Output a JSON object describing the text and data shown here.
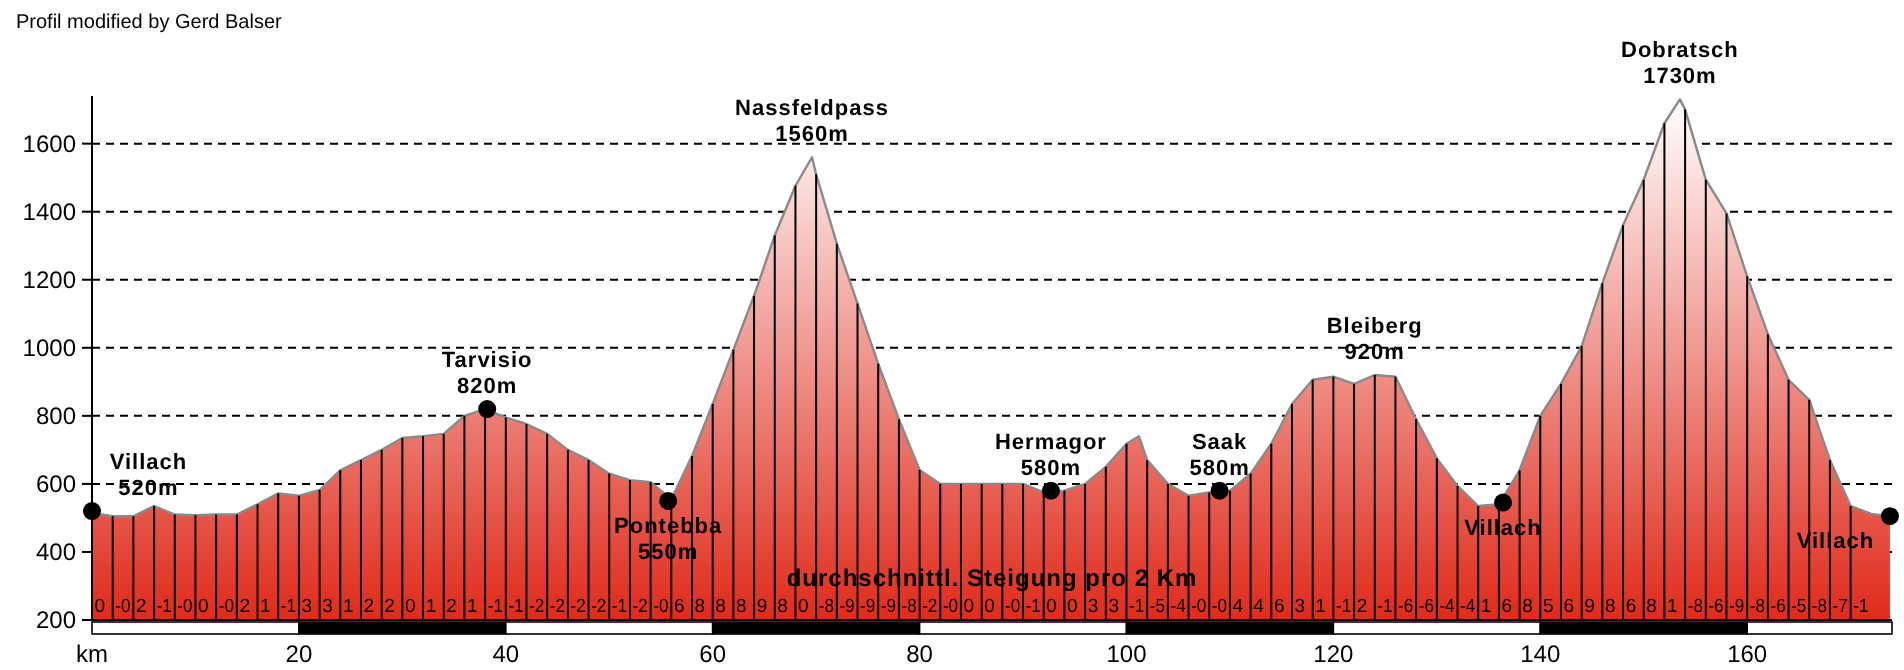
{
  "chart_data": {
    "type": "area",
    "title": "Profil modified by Gerd Balser",
    "xlim": [
      0,
      174
    ],
    "xticks": [
      {
        "value": 0,
        "label": "km"
      },
      20,
      40,
      60,
      80,
      100,
      120,
      140,
      160
    ],
    "ylim": [
      200,
      1740
    ],
    "yticks": [
      200,
      400,
      600,
      800,
      1000,
      1200,
      1400,
      1600
    ],
    "grid": "y",
    "series": [
      {
        "color": "#e02a1a",
        "x": [
          0,
          2,
          4,
          6,
          8,
          10,
          12,
          14,
          16,
          18,
          20,
          22,
          24,
          26,
          28,
          30,
          32,
          34,
          36,
          38,
          40,
          42,
          44,
          46,
          48,
          50,
          52,
          54,
          56,
          58,
          60,
          62,
          64,
          66,
          68,
          69.6,
          70,
          72,
          74,
          76,
          78,
          80,
          82,
          84,
          86,
          88,
          90,
          92,
          94,
          96,
          98,
          100,
          101.2,
          102,
          104,
          106,
          108,
          110,
          112,
          114,
          116,
          118,
          120,
          122,
          124,
          126,
          128,
          130,
          132,
          134,
          136,
          138,
          140,
          142,
          144,
          146,
          148,
          150,
          152,
          153.5,
          154,
          156,
          158,
          160,
          162,
          164,
          166,
          168,
          170,
          172,
          173.8
        ],
        "values": [
          515,
          505,
          505,
          535,
          510,
          508,
          510,
          510,
          540,
          572,
          565,
          582,
          640,
          670,
          700,
          735,
          740,
          747,
          800,
          820,
          795,
          776,
          747,
          700,
          670,
          630,
          611,
          605,
          555,
          682,
          835,
          994,
          1153,
          1330,
          1476,
          1560,
          1510,
          1306,
          1130,
          953,
          790,
          641,
          600,
          600,
          600,
          600,
          600,
          575,
          580,
          600,
          650,
          718,
          740,
          670,
          600,
          565,
          575,
          580,
          630,
          718,
          835,
          906,
          915,
          894,
          920,
          915,
          790,
          675,
          594,
          535,
          540,
          640,
          800,
          894,
          1005,
          1190,
          1360,
          1494,
          1660,
          1730,
          1700,
          1494,
          1395,
          1210,
          1040,
          906,
          847,
          670,
          535,
          512,
          505
        ]
      },
      {
        "type": "scatter",
        "marker": "circle",
        "color": "#000000",
        "x": [
          0,
          38.2,
          55.7,
          92.7,
          109,
          136.4,
          173.8
        ],
        "values": [
          520,
          820,
          550,
          580,
          580,
          545,
          505
        ]
      }
    ],
    "annotations": [
      {
        "text": "Villach\n520m",
        "x": 0,
        "y": 520
      },
      {
        "text": "Tarvisio\n820m",
        "x": 38.2,
        "y": 820
      },
      {
        "text": "Pontebba\n550m",
        "x": 55.7,
        "y": 550
      },
      {
        "text": "Nassfeldpass\n1560m",
        "x": 69.6,
        "y": 1560
      },
      {
        "text": "Hermagor\n580m",
        "x": 92.7,
        "y": 580
      },
      {
        "text": "Saak\n580m",
        "x": 109,
        "y": 580
      },
      {
        "text": "Bleiberg\n920m",
        "x": 124,
        "y": 920
      },
      {
        "text": "Villach",
        "x": 136.4,
        "y": 545
      },
      {
        "text": "Dobratsch\n1730m",
        "x": 153.5,
        "y": 1730
      },
      {
        "text": "Villach",
        "x": 173.8,
        "y": 505
      },
      "durchschnittl. Steigung pro 2 Km",
      {
        "text": "0",
        "x": 0
      },
      {
        "text": "-0",
        "x": 2
      },
      {
        "text": "2",
        "x": 4
      },
      {
        "text": "-1",
        "x": 6
      },
      {
        "text": "-0",
        "x": 8
      },
      {
        "text": "0",
        "x": 10
      },
      {
        "text": "-0",
        "x": 12
      },
      {
        "text": "2",
        "x": 14
      },
      {
        "text": "1",
        "x": 16
      },
      {
        "text": "-1",
        "x": 18
      },
      {
        "text": "3",
        "x": 20
      },
      {
        "text": "3",
        "x": 22
      },
      {
        "text": "1",
        "x": 24
      },
      {
        "text": "2",
        "x": 26
      },
      {
        "text": "2",
        "x": 28
      },
      {
        "text": "0",
        "x": 30
      },
      {
        "text": "1",
        "x": 32
      },
      {
        "text": "2",
        "x": 34
      },
      {
        "text": "1",
        "x": 36
      },
      {
        "text": "-1",
        "x": 38
      },
      {
        "text": "-1",
        "x": 40
      },
      {
        "text": "-2",
        "x": 42
      },
      {
        "text": "-2",
        "x": 44
      },
      {
        "text": "-2",
        "x": 46
      },
      {
        "text": "-2",
        "x": 48
      },
      {
        "text": "-1",
        "x": 50
      },
      {
        "text": "-2",
        "x": 52
      },
      {
        "text": "-0",
        "x": 54
      },
      {
        "text": "6",
        "x": 56
      },
      {
        "text": "8",
        "x": 58
      },
      {
        "text": "8",
        "x": 60
      },
      {
        "text": "8",
        "x": 62
      },
      {
        "text": "9",
        "x": 64
      },
      {
        "text": "8",
        "x": 66
      },
      {
        "text": "0",
        "x": 68
      },
      {
        "text": "-8",
        "x": 70
      },
      {
        "text": "-9",
        "x": 72
      },
      {
        "text": "-9",
        "x": 74
      },
      {
        "text": "-9",
        "x": 76
      },
      {
        "text": "-8",
        "x": 78
      },
      {
        "text": "-2",
        "x": 80
      },
      {
        "text": "-0",
        "x": 82
      },
      {
        "text": "0",
        "x": 84
      },
      {
        "text": "0",
        "x": 86
      },
      {
        "text": "-0",
        "x": 88
      },
      {
        "text": "-1",
        "x": 90
      },
      {
        "text": "0",
        "x": 92
      },
      {
        "text": "0",
        "x": 94
      },
      {
        "text": "3",
        "x": 96
      },
      {
        "text": "3",
        "x": 98
      },
      {
        "text": "-1",
        "x": 100
      },
      {
        "text": "-5",
        "x": 102
      },
      {
        "text": "-4",
        "x": 104
      },
      {
        "text": "-0",
        "x": 106
      },
      {
        "text": "-0",
        "x": 108
      },
      {
        "text": "4",
        "x": 110
      },
      {
        "text": "4",
        "x": 112
      },
      {
        "text": "6",
        "x": 114
      },
      {
        "text": "3",
        "x": 116
      },
      {
        "text": "1",
        "x": 118
      },
      {
        "text": "-1",
        "x": 120
      },
      {
        "text": "2",
        "x": 122
      },
      {
        "text": "-1",
        "x": 124
      },
      {
        "text": "-6",
        "x": 126
      },
      {
        "text": "-6",
        "x": 128
      },
      {
        "text": "-4",
        "x": 130
      },
      {
        "text": "-4",
        "x": 132
      },
      {
        "text": "1",
        "x": 134
      },
      {
        "text": "6",
        "x": 136
      },
      {
        "text": "8",
        "x": 138
      },
      {
        "text": "5",
        "x": 140
      },
      {
        "text": "6",
        "x": 142
      },
      {
        "text": "9",
        "x": 144
      },
      {
        "text": "8",
        "x": 146
      },
      {
        "text": "6",
        "x": 148
      },
      {
        "text": "8",
        "x": 150
      },
      {
        "text": "1",
        "x": 152
      },
      {
        "text": "-8",
        "x": 154
      },
      {
        "text": "-6",
        "x": 156
      },
      {
        "text": "-9",
        "x": 158
      },
      {
        "text": "-8",
        "x": 160
      },
      {
        "text": "-6",
        "x": 162
      },
      {
        "text": "-5",
        "x": 164
      },
      {
        "text": "-8",
        "x": 166
      },
      {
        "text": "-7",
        "x": 168
      },
      {
        "text": "-1",
        "x": 170
      }
    ]
  }
}
